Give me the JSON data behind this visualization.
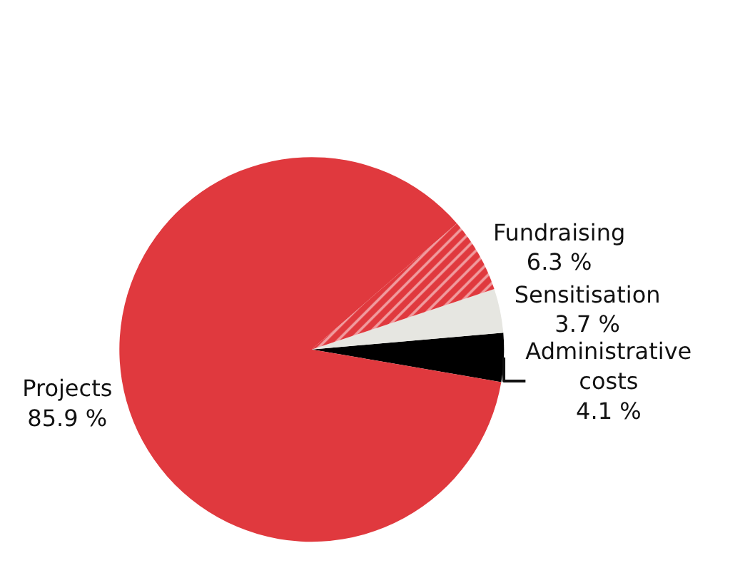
{
  "chart_data": {
    "type": "pie",
    "categories": [
      "Administrative costs",
      "Sensitisation",
      "Fundraising",
      "Projects"
    ],
    "values": [
      4.1,
      3.7,
      6.3,
      85.9
    ],
    "value_labels": [
      "4.1 %",
      "3.7 %",
      "6.3 %",
      "85.9 %"
    ],
    "colors": [
      "#000000",
      "#e6e6e1",
      "#e0393e",
      "#e0393e"
    ],
    "legend": false
  }
}
